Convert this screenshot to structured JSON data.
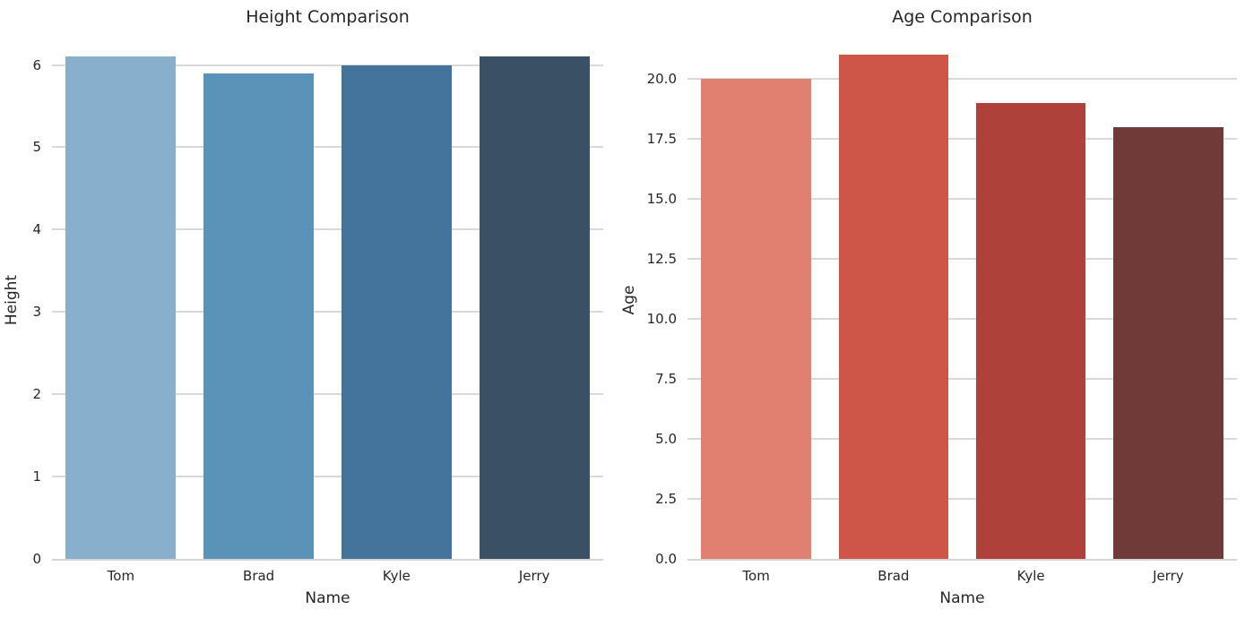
{
  "figure": {
    "background_color": "#ffffff",
    "text_color": "#262626",
    "grid_color": "#d9d9d9",
    "axis_line_color": "#d4d4d4"
  },
  "chart_data": [
    {
      "type": "bar",
      "title": "Height Comparison",
      "xlabel": "Name",
      "ylabel": "Height",
      "categories": [
        "Tom",
        "Brad",
        "Kyle",
        "Jerry"
      ],
      "values": [
        6.1,
        5.9,
        6.0,
        6.1
      ],
      "bar_colors": [
        "#88AFCB",
        "#5B92B8",
        "#44739B",
        "#3A5065"
      ],
      "ylim": [
        0,
        6.3
      ],
      "yticks": [
        {
          "value": 0,
          "label": "0"
        },
        {
          "value": 1,
          "label": "1"
        },
        {
          "value": 2,
          "label": "2"
        },
        {
          "value": 3,
          "label": "3"
        },
        {
          "value": 4,
          "label": "4"
        },
        {
          "value": 5,
          "label": "5"
        },
        {
          "value": 6,
          "label": "6"
        }
      ],
      "grid": "horizontal",
      "legend": "none"
    },
    {
      "type": "bar",
      "title": "Age Comparison",
      "xlabel": "Name",
      "ylabel": "Age",
      "categories": [
        "Tom",
        "Brad",
        "Kyle",
        "Jerry"
      ],
      "values": [
        20,
        21,
        19,
        18
      ],
      "bar_colors": [
        "#E08070",
        "#CD5649",
        "#AE423B",
        "#703A38"
      ],
      "ylim": [
        0,
        21.6
      ],
      "yticks": [
        {
          "value": 0,
          "label": "0.0"
        },
        {
          "value": 2.5,
          "label": "2.5"
        },
        {
          "value": 5,
          "label": "5.0"
        },
        {
          "value": 7.5,
          "label": "7.5"
        },
        {
          "value": 10,
          "label": "10.0"
        },
        {
          "value": 12.5,
          "label": "12.5"
        },
        {
          "value": 15,
          "label": "15.0"
        },
        {
          "value": 17.5,
          "label": "17.5"
        },
        {
          "value": 20,
          "label": "20.0"
        }
      ],
      "grid": "horizontal",
      "legend": "none"
    }
  ]
}
